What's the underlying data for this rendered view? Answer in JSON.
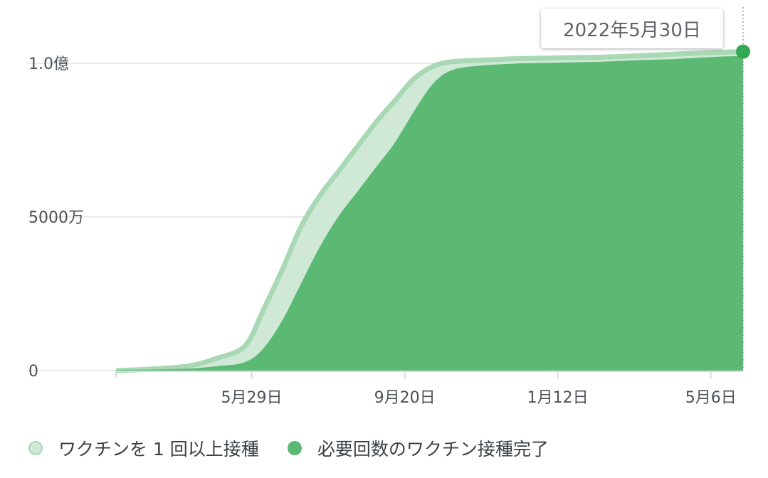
{
  "tooltip": {
    "date": "2022年5月30日"
  },
  "legend": {
    "items": [
      {
        "label": "ワクチンを 1 回以上接種",
        "color": "#cfe9d6"
      },
      {
        "label": "必要回数のワクチン接種完了",
        "color": "#5bb974"
      }
    ]
  },
  "chart_data": {
    "type": "area",
    "x_unit": "date",
    "x": [
      "2021-02-17",
      "2021-03-15",
      "2021-04-12",
      "2021-05-03",
      "2021-05-24",
      "2021-06-07",
      "2021-06-21",
      "2021-07-05",
      "2021-07-19",
      "2021-08-02",
      "2021-08-16",
      "2021-08-30",
      "2021-09-13",
      "2021-09-27",
      "2021-10-11",
      "2021-10-25",
      "2021-11-15",
      "2021-12-13",
      "2022-01-12",
      "2022-02-14",
      "2022-03-14",
      "2022-04-11",
      "2022-05-06",
      "2022-05-30"
    ],
    "series": [
      {
        "name": "ワクチンを 1 回以上接種",
        "color": "#cfe9d6",
        "values": [
          0,
          0.5,
          1.5,
          4,
          8,
          20,
          33,
          47,
          57,
          65,
          73,
          81,
          88,
          95,
          99,
          100.5,
          101,
          101.5,
          101.8,
          102,
          102.5,
          103,
          103.5,
          103.8
        ]
      },
      {
        "name": "必要回数のワクチン接種完了",
        "color": "#5bb974",
        "values": [
          0,
          0.1,
          0.4,
          1.2,
          2.5,
          7,
          16,
          28,
          40,
          50,
          58,
          66,
          74,
          84,
          93,
          97.5,
          99,
          99.7,
          100,
          100.3,
          100.8,
          101.2,
          101.8,
          102.2
        ]
      }
    ],
    "y_unit": "百万",
    "ylim": [
      0,
      110
    ],
    "y_ticks": [
      {
        "value": 0,
        "label": "0"
      },
      {
        "value": 50,
        "label": "5000万"
      },
      {
        "value": 100,
        "label": "1.0億"
      }
    ],
    "x_ticks": [
      {
        "date": "2021-05-29",
        "label": "5月29日"
      },
      {
        "date": "2021-09-20",
        "label": "9月20日"
      },
      {
        "date": "2022-01-12",
        "label": "1月12日"
      },
      {
        "date": "2022-05-06",
        "label": "5月6日"
      }
    ],
    "highlight": {
      "date": "2022-05-30",
      "value": 103.8
    },
    "grid": true,
    "legend_position": "bottom"
  }
}
